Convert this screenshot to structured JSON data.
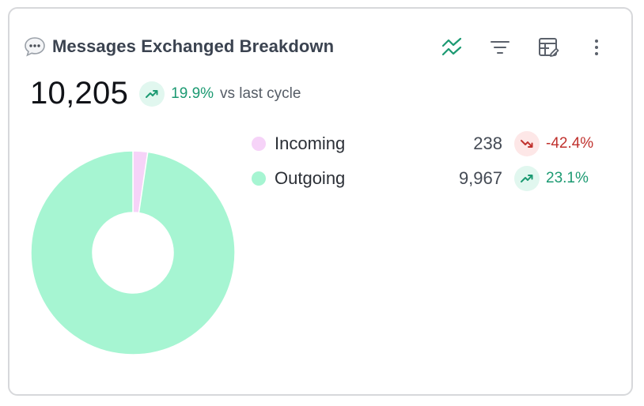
{
  "card": {
    "title": "Messages Exchanged Breakdown",
    "title_icon": "speech-bubble-icon",
    "toolbar": [
      {
        "name": "chart-type-icon"
      },
      {
        "name": "filter-icon"
      },
      {
        "name": "table-edit-icon"
      },
      {
        "name": "more-vertical-icon"
      }
    ],
    "total": "10,205",
    "total_change": "19.9%",
    "total_change_direction": "up",
    "total_suffix": "vs last cycle"
  },
  "colors": {
    "incoming": "#f6d3f8",
    "outgoing": "#a6f5d2",
    "up": "#1c9a72",
    "down": "#c0322e"
  },
  "chart_data": {
    "type": "pie",
    "donut": true,
    "categories": [
      "Incoming",
      "Outgoing"
    ],
    "values": [
      238,
      9967
    ],
    "value_labels": [
      "238",
      "9,967"
    ],
    "changes": [
      "-42.4%",
      "23.1%"
    ],
    "change_directions": [
      "down",
      "up"
    ],
    "legend_placement": "right"
  }
}
